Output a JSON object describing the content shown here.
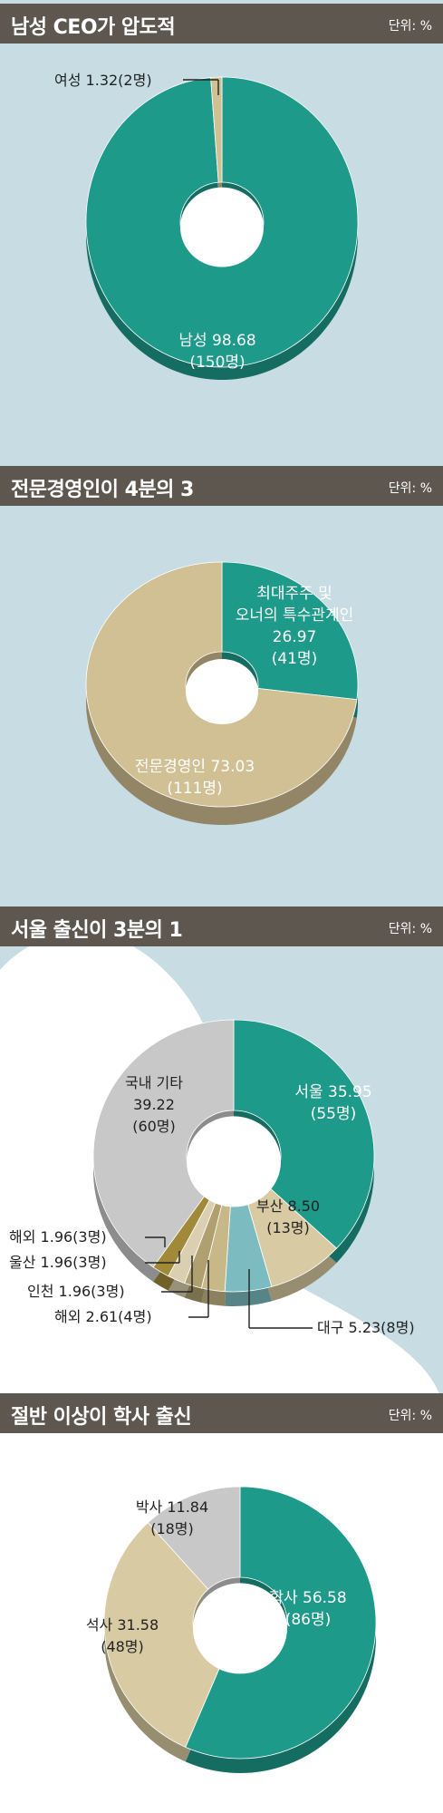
{
  "colors": {
    "header_bg": "#5d5750",
    "teal": "#1e9a8a",
    "teal_dark": "#13685d",
    "tan": "#d0c093",
    "tan_dark": "#a89868",
    "gray": "#c8c8c8",
    "gray_dark": "#a0a0a0",
    "light_blue": "#7cbcc0",
    "olive": "#a08a3a",
    "sky": "#c8dce4"
  },
  "chart_data": [
    {
      "type": "pie",
      "title": "남성 CEO가 압도적",
      "unit": "단위: %",
      "slices": [
        {
          "label": "남성",
          "value": 98.68,
          "value_text": "98.68",
          "count": "(150명)",
          "color": "#1e9a8a"
        },
        {
          "label": "여성",
          "value": 1.32,
          "value_text": "1.32(2명)",
          "color": "#d0c093"
        }
      ]
    },
    {
      "type": "pie",
      "title": "전문경영인이 4분의 3",
      "unit": "단위: %",
      "slices": [
        {
          "label": "최대주주 및 오너의 특수관계인",
          "label_line1": "최대주주 및",
          "label_line2": "오너의 특수관계인",
          "value": 26.97,
          "value_text": "26.97",
          "count": "(41명)",
          "color": "#1e9a8a"
        },
        {
          "label": "전문경영인",
          "value": 73.03,
          "value_text": "73.03",
          "count": "(111명)",
          "color": "#d0c093"
        }
      ]
    },
    {
      "type": "pie",
      "title": "서울 출신이 3분의 1",
      "unit": "단위: %",
      "slices": [
        {
          "label": "서울",
          "value": 35.95,
          "value_text": "35.95",
          "count": "(55명)",
          "color": "#1e9a8a"
        },
        {
          "label": "부산",
          "value": 8.5,
          "value_text": "8.50",
          "count": "(13명)",
          "color": "#d8cba3"
        },
        {
          "label": "대구",
          "value": 5.23,
          "value_text": "5.23(8명)",
          "color": "#7cbcc0"
        },
        {
          "label": "해외",
          "value": 2.61,
          "value_text": "2.61(4명)",
          "color": "#c8b888"
        },
        {
          "label": "인천",
          "value": 1.96,
          "value_text": "1.96(3명)",
          "color": "#b0a070"
        },
        {
          "label": "울산",
          "value": 1.96,
          "value_text": "1.96(3명)",
          "color": "#dad0b0"
        },
        {
          "label": "해외",
          "value": 1.96,
          "value_text": "1.96(3명)",
          "color": "#a08a3a"
        },
        {
          "label": "국내 기타",
          "value": 39.22,
          "value_text": "39.22",
          "count": "(60명)",
          "color": "#c8c8c8"
        }
      ]
    },
    {
      "type": "pie",
      "title": "절반 이상이 학사 출신",
      "unit": "단위: %",
      "slices": [
        {
          "label": "학사",
          "value": 56.58,
          "value_text": "56.58",
          "count": "(86명)",
          "color": "#1e9a8a"
        },
        {
          "label": "석사",
          "value": 31.58,
          "value_text": "31.58",
          "count": "(48명)",
          "color": "#d8cba3"
        },
        {
          "label": "박사",
          "value": 11.84,
          "value_text": "11.84",
          "count": "(18명)",
          "color": "#c8c8c8"
        }
      ]
    }
  ]
}
